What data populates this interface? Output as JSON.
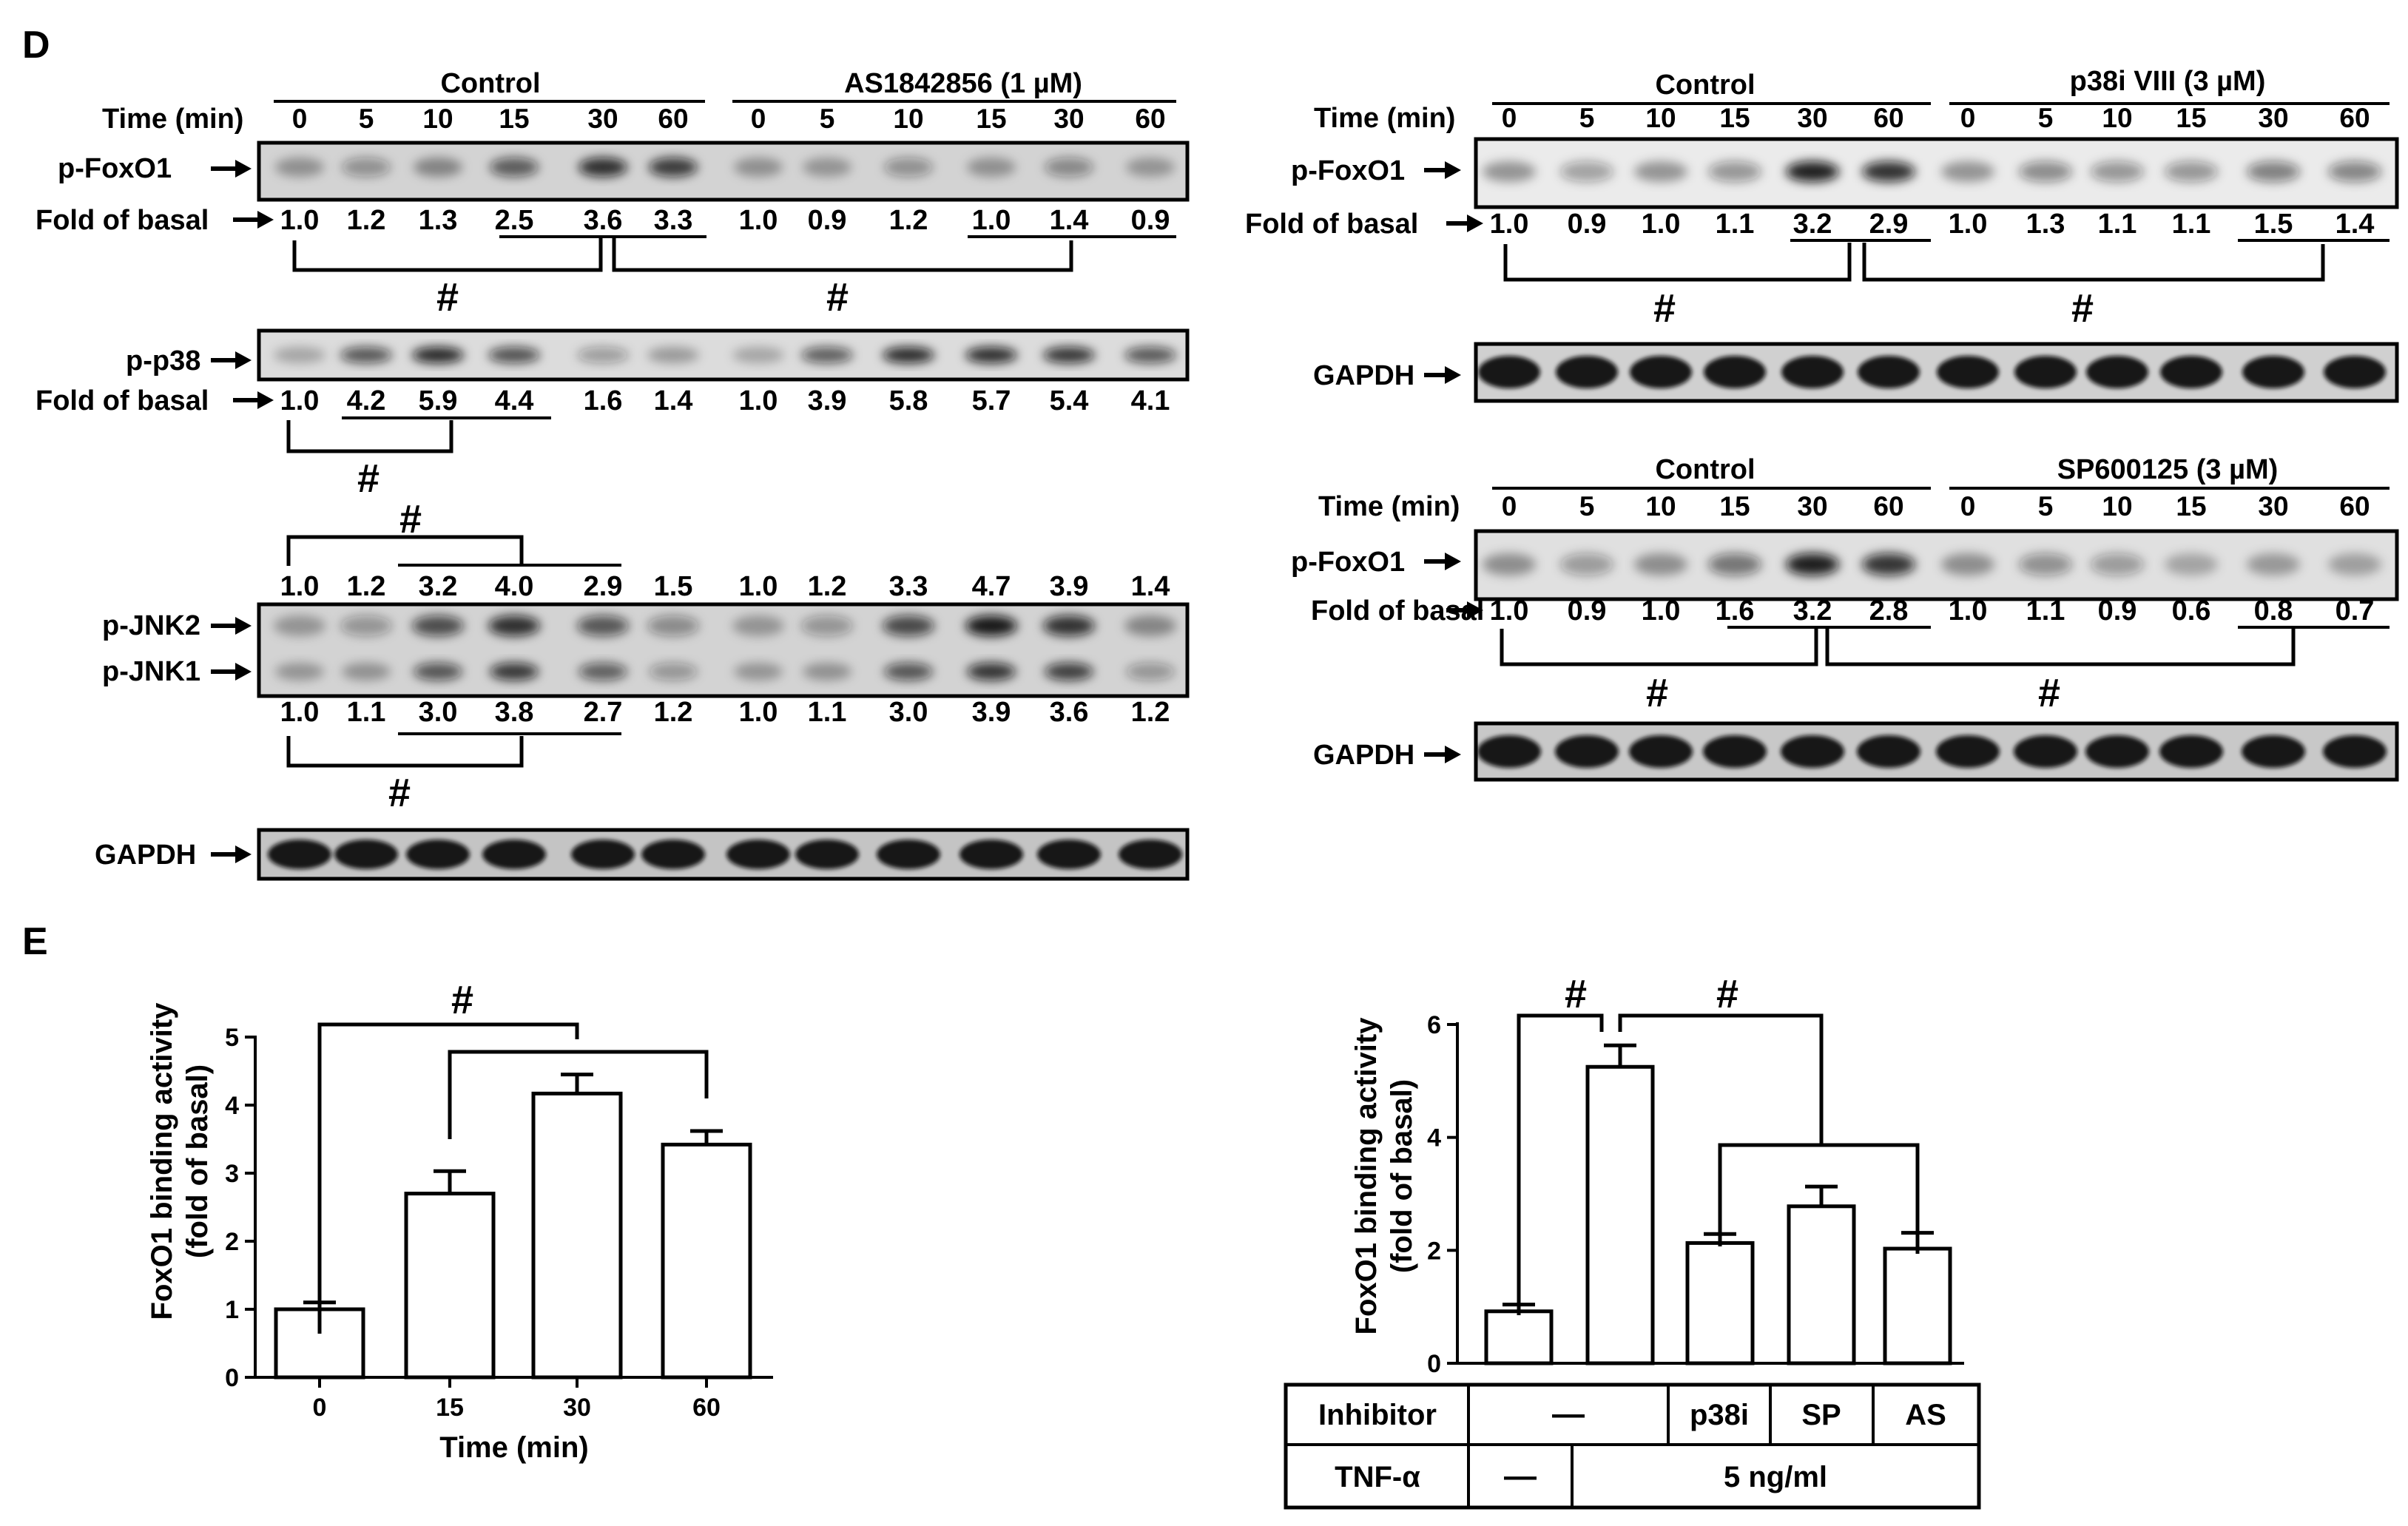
{
  "panelD": {
    "label": "D",
    "timeLabel": "Time (min)",
    "foldLabel": "Fold of basal",
    "times": [
      "0",
      "5",
      "10",
      "15",
      "30",
      "60"
    ],
    "hash": "#",
    "left": {
      "ctrlHeader": "Control",
      "treatHeader": "AS1842856 (1 µM)",
      "pFoxO1": {
        "label": "p-FoxO1",
        "values": [
          "1.0",
          "1.2",
          "1.3",
          "2.5",
          "3.6",
          "3.3",
          "1.0",
          "0.9",
          "1.2",
          "1.0",
          "1.4",
          "0.9"
        ]
      },
      "pp38": {
        "label": "p-p38",
        "values": [
          "1.0",
          "4.2",
          "5.9",
          "4.4",
          "1.6",
          "1.4",
          "1.0",
          "3.9",
          "5.8",
          "5.7",
          "5.4",
          "4.1"
        ]
      },
      "jnk2Values": [
        "1.0",
        "1.2",
        "3.2",
        "4.0",
        "2.9",
        "1.5",
        "1.0",
        "1.2",
        "3.3",
        "4.7",
        "3.9",
        "1.4"
      ],
      "jnk2Label": "p-JNK2",
      "jnk1Label": "p-JNK1",
      "jnk1Values": [
        "1.0",
        "1.1",
        "3.0",
        "3.8",
        "2.7",
        "1.2",
        "1.0",
        "1.1",
        "3.0",
        "3.9",
        "3.6",
        "1.2"
      ],
      "gapdhLabel": "GAPDH"
    },
    "right": {
      "top": {
        "ctrlHeader": "Control",
        "treatHeader": "p38i VIII (3 µM)",
        "label": "p-FoxO1",
        "values": [
          "1.0",
          "0.9",
          "1.0",
          "1.1",
          "3.2",
          "2.9",
          "1.0",
          "1.3",
          "1.1",
          "1.1",
          "1.5",
          "1.4"
        ],
        "gapdhLabel": "GAPDH"
      },
      "bottom": {
        "ctrlHeader": "Control",
        "treatHeader": "SP600125 (3 µM)",
        "label": "p-FoxO1",
        "values": [
          "1.0",
          "0.9",
          "1.0",
          "1.6",
          "3.2",
          "2.8",
          "1.0",
          "1.1",
          "0.9",
          "0.6",
          "0.8",
          "0.7"
        ],
        "gapdhLabel": "GAPDH"
      }
    }
  },
  "panelE": {
    "label": "E",
    "hash": "#",
    "table": {
      "inhibitorLabel": "Inhibitor",
      "dash": "—",
      "p38i": "p38i",
      "sp": "SP",
      "as": "AS",
      "tnfLabel": "TNF-α",
      "dose": "5 ng/ml"
    }
  },
  "chart_data": [
    {
      "type": "bar",
      "categories": [
        "0",
        "15",
        "30",
        "60"
      ],
      "values": [
        1.0,
        2.7,
        4.17,
        3.42
      ],
      "errors": [
        0.1,
        0.33,
        0.28,
        0.2
      ],
      "xlabel": "Time (min)",
      "ylabel": "FoxO1 binding activity\n(fold of basal)",
      "ylim": [
        0,
        5
      ],
      "yticks": [
        "0",
        "1",
        "2",
        "3",
        "4",
        "5"
      ]
    },
    {
      "type": "bar",
      "categories": [
        "",
        "",
        "p38i",
        "SP",
        "AS"
      ],
      "values": [
        0.92,
        5.25,
        2.13,
        2.78,
        2.03
      ],
      "errors": [
        0.12,
        0.38,
        0.16,
        0.35,
        0.28
      ],
      "ylabel": "FoxO1 binding activity\n(fold of basal)",
      "ylim": [
        0,
        6
      ],
      "yticks": [
        "0",
        "2",
        "4",
        "6"
      ]
    }
  ]
}
